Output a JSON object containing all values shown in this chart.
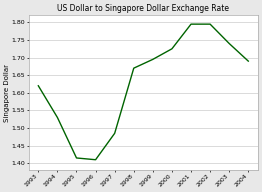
{
  "title": "US Dollar to Singapore Dollar Exchange Rate",
  "ylabel": "Singapore Dollar",
  "years": [
    1993,
    1994,
    1995,
    1996,
    1997,
    1998,
    1999,
    2000,
    2001,
    2002,
    2003,
    2004
  ],
  "values": [
    1.62,
    1.53,
    1.415,
    1.41,
    1.485,
    1.67,
    1.695,
    1.725,
    1.795,
    1.795,
    1.74,
    1.69
  ],
  "line_color": "#006400",
  "ylim": [
    1.38,
    1.82
  ],
  "yticks": [
    1.4,
    1.45,
    1.5,
    1.55,
    1.6,
    1.65,
    1.7,
    1.75,
    1.8
  ],
  "bg_color": "#e8e8e8",
  "plot_bg_color": "#ffffff",
  "title_fontsize": 5.5,
  "label_fontsize": 5,
  "tick_fontsize": 4.5
}
